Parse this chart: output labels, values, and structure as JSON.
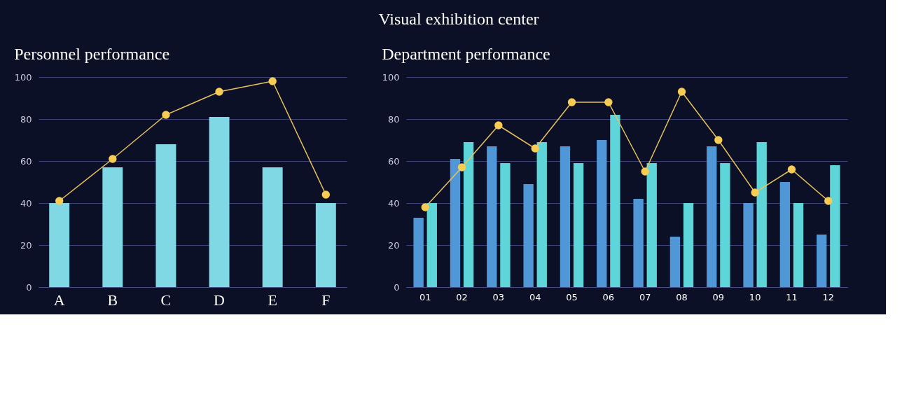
{
  "chart_data": [
    {
      "type": "other",
      "title": "Visual exhibition center"
    },
    {
      "type": "bar",
      "title": "Personnel performance",
      "categories": [
        "A",
        "B",
        "C",
        "D",
        "E",
        "F"
      ],
      "ylim": [
        0,
        100
      ],
      "yticks": [
        0,
        20,
        40,
        60,
        80,
        100
      ],
      "grid": "y",
      "marker": "circle",
      "line_style": "solid",
      "series": [
        {
          "color": "#7fd8e3",
          "values": [
            40,
            57,
            68,
            81,
            57,
            40
          ]
        },
        {
          "type": "line",
          "color": "#e8c25e",
          "values": [
            41,
            61,
            82,
            93,
            98,
            44
          ]
        }
      ]
    },
    {
      "type": "bar",
      "title": "Department performance",
      "categories": [
        "01",
        "02",
        "03",
        "04",
        "05",
        "06",
        "07",
        "08",
        "09",
        "10",
        "11",
        "12"
      ],
      "ylim": [
        0,
        100
      ],
      "yticks": [
        0,
        20,
        40,
        60,
        80,
        100
      ],
      "grid": "y",
      "marker": "circle",
      "line_style": "solid",
      "series": [
        {
          "color": "#4f97d6",
          "values": [
            33,
            61,
            67,
            49,
            67,
            70,
            42,
            24,
            67,
            40,
            50,
            25
          ]
        },
        {
          "color": "#5ed5d8",
          "values": [
            40,
            69,
            59,
            69,
            59,
            82,
            59,
            40,
            59,
            69,
            40,
            58
          ]
        },
        {
          "type": "line",
          "color": "#e8c25e",
          "values": [
            38,
            57,
            77,
            66,
            88,
            88,
            55,
            93,
            70,
            45,
            56,
            41
          ]
        }
      ]
    }
  ]
}
